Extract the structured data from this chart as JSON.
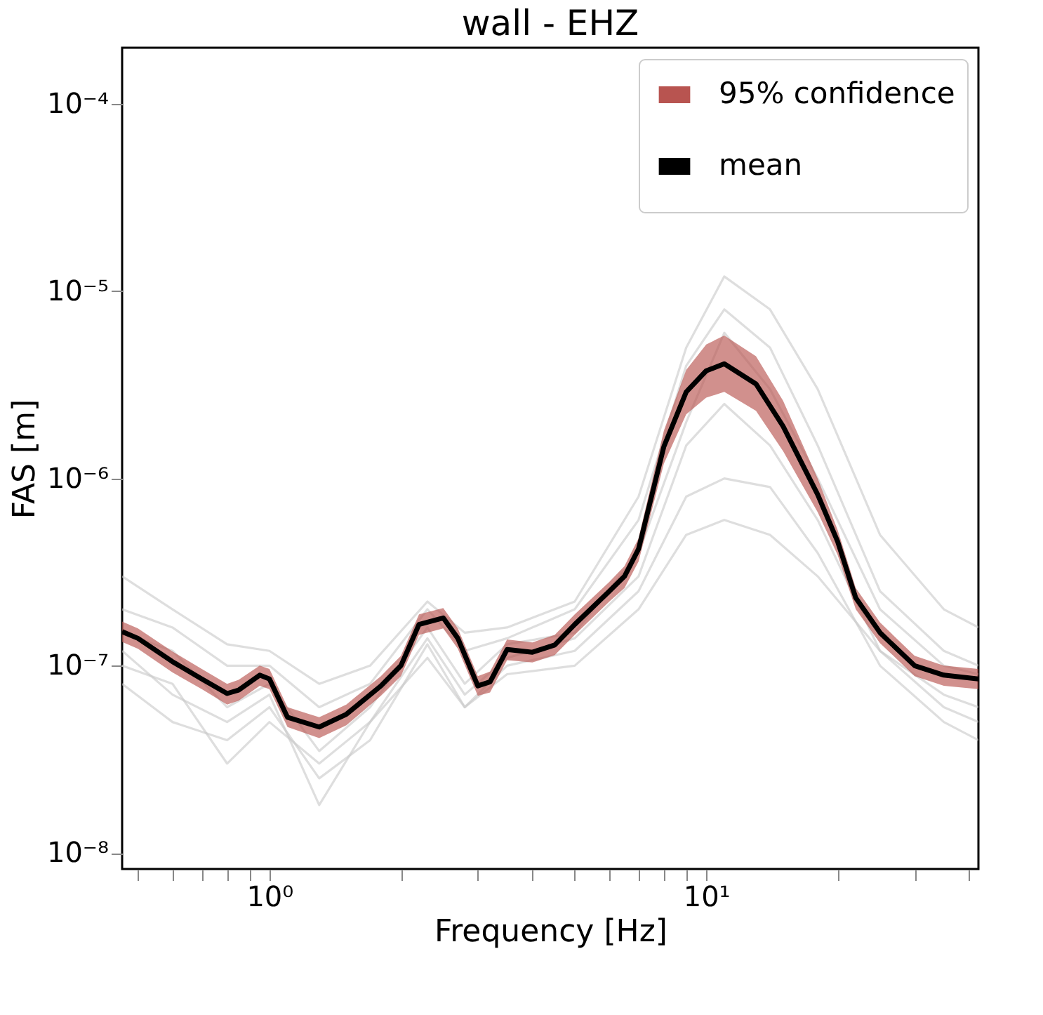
{
  "chart_data": {
    "type": "line",
    "title": "wall - EHZ",
    "annotations": [
      "95% confidence"
    ],
    "xlabel": "Frequency [Hz]",
    "ylabel": "FAS [m]",
    "log": "xy",
    "grid": false,
    "legend": "top right",
    "xlim": [
      0.46,
      42
    ],
    "ylim": [
      8.2e-09,
      0.0002
    ],
    "xticks": [
      {
        "value": 0.5,
        "label": null
      },
      {
        "value": 0.6,
        "label": null
      },
      {
        "value": 0.7,
        "label": null
      },
      {
        "value": 0.8,
        "label": null
      },
      {
        "value": 0.9,
        "label": null
      },
      {
        "value": 1,
        "label": "10⁰"
      },
      {
        "value": 2,
        "label": null
      },
      {
        "value": 3,
        "label": null
      },
      {
        "value": 4,
        "label": null
      },
      {
        "value": 5,
        "label": null
      },
      {
        "value": 6,
        "label": null
      },
      {
        "value": 7,
        "label": null
      },
      {
        "value": 8,
        "label": null
      },
      {
        "value": 9,
        "label": null
      },
      {
        "value": 10,
        "label": "10¹"
      },
      {
        "value": 20,
        "label": null
      },
      {
        "value": 30,
        "label": null
      },
      {
        "value": 40,
        "label": null
      }
    ],
    "yticks": [
      {
        "value": 1e-08,
        "label": "10⁻⁸"
      },
      {
        "value": 1e-07,
        "label": "10⁻⁷"
      },
      {
        "value": 1e-06,
        "label": "10⁻⁶"
      },
      {
        "value": 1e-05,
        "label": "10⁻⁵"
      },
      {
        "value": 0.0001,
        "label": "10⁻⁴"
      }
    ],
    "x": [
      0.46,
      0.5,
      0.6,
      0.7,
      0.8,
      0.85,
      0.95,
      1.0,
      1.1,
      1.3,
      1.5,
      1.8,
      2.0,
      2.2,
      2.5,
      2.7,
      3.0,
      3.2,
      3.5,
      4.0,
      4.5,
      5.0,
      6.0,
      6.5,
      7.0,
      8.0,
      9.0,
      10,
      11,
      13,
      15,
      18,
      20,
      22,
      25,
      30,
      35,
      42
    ],
    "series": [
      {
        "color": "#c8c8c8",
        "x": [
          0.46,
          0.6,
          0.8,
          1.0,
          1.3,
          1.7,
          2.3,
          2.8,
          3.5,
          5,
          7,
          9,
          11,
          14,
          18,
          25,
          35,
          42
        ],
        "values": [
          3e-07,
          2e-07,
          1.3e-07,
          1.2e-07,
          8e-08,
          1e-07,
          2.2e-07,
          1.5e-07,
          1.6e-07,
          2.2e-07,
          8e-07,
          5e-06,
          1.2e-05,
          8e-06,
          3e-06,
          5e-07,
          2e-07,
          1.6e-07
        ]
      },
      {
        "color": "#c8c8c8",
        "x": [
          0.46,
          0.6,
          0.8,
          1.0,
          1.3,
          1.7,
          2.3,
          2.8,
          3.5,
          5,
          7,
          9,
          11,
          14,
          18,
          25,
          35,
          42
        ],
        "values": [
          8e-08,
          5e-08,
          4e-08,
          6e-08,
          2.5e-08,
          4e-08,
          1.3e-07,
          6e-08,
          1e-07,
          1.2e-07,
          2.5e-07,
          8e-07,
          1e-06,
          9e-07,
          4e-07,
          1e-07,
          5e-08,
          4e-08
        ]
      },
      {
        "color": "#c8c8c8",
        "x": [
          0.46,
          0.6,
          0.8,
          1.0,
          1.3,
          1.7,
          2.3,
          2.8,
          3.5,
          5,
          7,
          9,
          11,
          14,
          18,
          25,
          35,
          42
        ],
        "values": [
          1.5e-07,
          1.2e-07,
          6e-08,
          8e-08,
          3.5e-08,
          6e-08,
          1.6e-07,
          8e-08,
          1.3e-07,
          1.5e-07,
          4e-07,
          2e-06,
          6e-06,
          3e-06,
          1e-06,
          2e-07,
          1e-07,
          9e-08
        ]
      },
      {
        "color": "#c8c8c8",
        "x": [
          0.46,
          0.6,
          0.8,
          1.0,
          1.3,
          1.7,
          2.3,
          2.8,
          3.5,
          5,
          7,
          9,
          11,
          14,
          18,
          25,
          35,
          42
        ],
        "values": [
          1.2e-07,
          7e-08,
          5e-08,
          7e-08,
          1.8e-08,
          5e-08,
          1.4e-07,
          7e-08,
          1.1e-07,
          1.4e-07,
          3e-07,
          1.5e-06,
          2.5e-06,
          1.5e-06,
          6e-07,
          1.2e-07,
          7e-08,
          6e-08
        ]
      },
      {
        "color": "#c8c8c8",
        "x": [
          0.46,
          0.6,
          0.8,
          1.0,
          1.3,
          1.7,
          2.3,
          2.8,
          3.5,
          5,
          7,
          9,
          11,
          14,
          18,
          25,
          35,
          42
        ],
        "values": [
          2e-07,
          1.6e-07,
          1e-07,
          1e-07,
          6e-08,
          8e-08,
          2e-07,
          1.2e-07,
          1.4e-07,
          2e-07,
          6e-07,
          4e-06,
          8e-06,
          5e-06,
          1.5e-06,
          2.5e-07,
          1.2e-07,
          1e-07
        ]
      },
      {
        "color": "#c8c8c8",
        "x": [
          0.46,
          0.6,
          0.8,
          1.0,
          1.3,
          1.7,
          2.3,
          2.8,
          3.5,
          5,
          7,
          9,
          11,
          14,
          18,
          25,
          35,
          42
        ],
        "values": [
          1e-07,
          8e-08,
          3e-08,
          5e-08,
          3e-08,
          5e-08,
          1.1e-07,
          6e-08,
          9e-08,
          1e-07,
          2e-07,
          5e-07,
          6e-07,
          5e-07,
          3e-07,
          1.2e-07,
          6e-08,
          5e-08
        ]
      },
      {
        "name": "mean",
        "type": "line",
        "color": "#000000",
        "colors": [
          "#b85450",
          "#b85450",
          "#b85450",
          "#b85450",
          "#b85450",
          "#b85450",
          "#b85450",
          "#b85450",
          "#b85450",
          "#b85450",
          "#b85450",
          "#b85450",
          "#b85450",
          "#b85450",
          "#b85450",
          "#b85450",
          "#b85450",
          "#b85450",
          "#b85450",
          "#b85450",
          "#b85450",
          "#b85450",
          "#b85450",
          "#b85450",
          "#b85450",
          "#b85450",
          "#b85450",
          "#b85450",
          "#b85450",
          "#b85450",
          "#b85450",
          "#b85450",
          "#b85450",
          "#b85450",
          "#b85450",
          "#b85450",
          "#b85450",
          "#b85450"
        ],
        "lower": [
          1.34e-07,
          1.23e-07,
          9.2e-08,
          7.5e-08,
          6.2e-08,
          6.5e-08,
          7.8e-08,
          7.5e-08,
          4.7e-08,
          4.1e-08,
          4.8e-08,
          6.9e-08,
          8.8e-08,
          1.46e-07,
          1.58e-07,
          1.23e-07,
          6.9e-08,
          7.2e-08,
          1.07e-07,
          1.04e-07,
          1.14e-07,
          1.46e-07,
          2.2e-07,
          2.6e-07,
          3.6e-07,
          1.2e-06,
          2.2e-06,
          2.7e-06,
          2.9e-06,
          2.3e-06,
          1.4e-06,
          6.6e-07,
          3.9e-07,
          2e-07,
          1.32e-07,
          8.8e-08,
          7.8e-08,
          7.5e-08
        ],
        "upper": [
          1.72e-07,
          1.58e-07,
          1.19e-07,
          9.6e-08,
          8e-08,
          8.4e-08,
          1e-07,
          9.6e-08,
          6e-08,
          5.3e-08,
          6.2e-08,
          8.8e-08,
          1.13e-07,
          1.88e-07,
          2.03e-07,
          1.58e-07,
          8.8e-08,
          9.3e-08,
          1.38e-07,
          1.33e-07,
          1.46e-07,
          1.88e-07,
          2.8e-07,
          3.4e-07,
          4.8e-07,
          1.8e-06,
          3.8e-06,
          5.2e-06,
          5.8e-06,
          4.5e-06,
          2.6e-06,
          1e-06,
          5.3e-07,
          2.6e-07,
          1.7e-07,
          1.13e-07,
          1e-07,
          9.6e-08
        ],
        "values": [
          1.52e-07,
          1.4e-07,
          1.05e-07,
          8.5e-08,
          7.1e-08,
          7.4e-08,
          8.9e-08,
          8.5e-08,
          5.3e-08,
          4.7e-08,
          5.5e-08,
          7.8e-08,
          1e-07,
          1.66e-07,
          1.8e-07,
          1.4e-07,
          7.8e-08,
          8.2e-08,
          1.22e-07,
          1.18e-07,
          1.29e-07,
          1.66e-07,
          2.5e-07,
          3e-07,
          4.2e-07,
          1.48e-06,
          2.9e-06,
          3.76e-06,
          4.1e-06,
          3.2e-06,
          1.9e-06,
          8.2e-07,
          4.6e-07,
          2.3e-07,
          1.5e-07,
          1e-07,
          8.9e-08,
          8.5e-08
        ]
      }
    ]
  }
}
